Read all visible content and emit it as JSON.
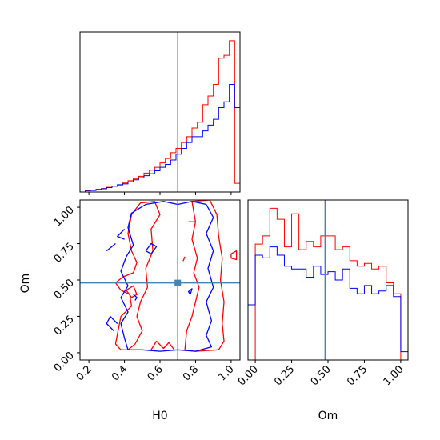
{
  "chart_data": {
    "type": "corner",
    "axis_labels": {
      "x": "H0",
      "y": "Om"
    },
    "truth": {
      "H0": 0.7,
      "Om": 0.48
    },
    "colors": {
      "red": "#ff0000",
      "blue": "#0000ff",
      "truth": "#4682b4",
      "frame": "#000000"
    },
    "panels": {
      "h0_hist": {
        "type": "histogram",
        "xlim": [
          0.15,
          1.05
        ],
        "bin_edges": [
          0.15,
          0.18,
          0.21,
          0.24,
          0.27,
          0.3,
          0.33,
          0.36,
          0.39,
          0.42,
          0.45,
          0.48,
          0.51,
          0.54,
          0.57,
          0.6,
          0.63,
          0.66,
          0.69,
          0.72,
          0.75,
          0.78,
          0.81,
          0.84,
          0.87,
          0.9,
          0.93,
          0.96,
          0.99,
          1.02,
          1.05
        ],
        "series": [
          {
            "name": "",
            "color": "red",
            "values": [
              0.0,
              0.4,
              0.6,
              0.9,
              1.2,
              1.6,
              2.0,
              2.4,
              3.1,
              3.9,
              4.6,
              5.4,
              6.5,
              7.5,
              8.5,
              10,
              11.5,
              13.5,
              15,
              17,
              19,
              22,
              24,
              30,
              33,
              37,
              46,
              47,
              52,
              3
            ]
          },
          {
            "name": "",
            "color": "blue",
            "values": [
              0.0,
              0.5,
              0.5,
              0.9,
              1.1,
              1.5,
              2.0,
              2.5,
              2.8,
              3.5,
              4.2,
              4.9,
              5.6,
              6.3,
              7.3,
              8.5,
              9.5,
              11,
              13,
              15,
              17,
              19,
              19,
              21,
              23,
              25,
              29,
              31,
              37,
              29
            ]
          }
        ]
      },
      "om_hist": {
        "type": "histogram",
        "xlim": [
          -0.05,
          1.05
        ],
        "xticks": [
          "0.00",
          "0.25",
          "0.50",
          "0.75",
          "1.00"
        ],
        "bin_edges": [
          -0.05,
          0.0,
          0.05,
          0.1,
          0.15,
          0.2,
          0.25,
          0.3,
          0.35,
          0.4,
          0.45,
          0.5,
          0.55,
          0.6,
          0.65,
          0.7,
          0.75,
          0.8,
          0.85,
          0.9,
          0.95,
          1.0,
          1.05
        ],
        "series": [
          {
            "name": "",
            "color": "red",
            "values": [
              0,
              42,
              45,
              55,
              51,
              41,
              53,
              40,
              43,
              41,
              45,
              45,
              40,
              41,
              36,
              34,
              35,
              33,
              34,
              28,
              24,
              0
            ]
          },
          {
            "name": "",
            "color": "blue",
            "values": [
              20,
              38,
              37,
              41,
              38,
              34,
              33,
              33,
              30,
              34,
              31,
              32,
              29,
              33,
              26,
              24,
              27,
              24,
              25,
              27,
              23,
              3
            ]
          }
        ]
      },
      "contour": {
        "type": "contour",
        "xlim": [
          0.15,
          1.05
        ],
        "ylim": [
          -0.05,
          1.05
        ],
        "xticks": [
          "0.2",
          "0.4",
          "0.6",
          "0.8",
          "1.0"
        ],
        "yticks": [
          "0.00",
          "0.25",
          "0.50",
          "0.75",
          "1.00"
        ],
        "series": [
          {
            "color": "red",
            "paths": [
              [
                [
                  0.35,
                  0.06
                ],
                [
                  0.38,
                  0.25
                ],
                [
                  0.44,
                  0.32
                ],
                [
                  0.43,
                  0.4
                ],
                [
                  0.38,
                  0.43
                ],
                [
                  0.35,
                  0.48
                ],
                [
                  0.39,
                  0.52
                ],
                [
                  0.45,
                  0.55
                ],
                [
                  0.47,
                  0.62
                ],
                [
                  0.44,
                  0.7
                ],
                [
                  0.42,
                  0.82
                ],
                [
                  0.44,
                  0.95
                ],
                [
                  0.49,
                  1.03
                ],
                [
                  0.57,
                  1.04
                ],
                [
                  0.6,
                  0.95
                ],
                [
                  0.55,
                  0.85
                ],
                [
                  0.56,
                  0.7
                ],
                [
                  0.52,
                  0.58
                ],
                [
                  0.53,
                  0.45
                ],
                [
                  0.49,
                  0.35
                ],
                [
                  0.47,
                  0.25
                ],
                [
                  0.5,
                  0.15
                ],
                [
                  0.46,
                  0.06
                ],
                [
                  0.42,
                  0.02
                ],
                [
                  0.38,
                  0.02
                ],
                [
                  0.35,
                  0.06
                ]
              ],
              [
                [
                  0.74,
                  0.02
                ],
                [
                  0.75,
                  0.15
                ],
                [
                  0.78,
                  0.25
                ],
                [
                  0.8,
                  0.35
                ],
                [
                  0.82,
                  0.45
                ],
                [
                  0.79,
                  0.55
                ],
                [
                  0.81,
                  0.65
                ],
                [
                  0.78,
                  0.78
                ],
                [
                  0.8,
                  0.9
                ],
                [
                  0.78,
                  1.04
                ],
                [
                  0.88,
                  1.05
                ],
                [
                  0.92,
                  0.95
                ],
                [
                  0.93,
                  0.8
                ],
                [
                  0.95,
                  0.65
                ],
                [
                  0.94,
                  0.5
                ],
                [
                  0.96,
                  0.35
                ],
                [
                  0.95,
                  0.2
                ],
                [
                  0.96,
                  0.08
                ],
                [
                  0.93,
                  0.02
                ],
                [
                  0.8,
                  0.01
                ],
                [
                  0.74,
                  0.02
                ]
              ],
              [
                [
                  0.55,
                  0.02
                ],
                [
                  0.58,
                  0.08
                ],
                [
                  0.62,
                  0.03
                ],
                [
                  0.65,
                  0.07
                ],
                [
                  0.68,
                  0.02
                ]
              ],
              [
                [
                  0.41,
                  0.43
                ],
                [
                  0.44,
                  0.38
                ],
                [
                  0.47,
                  0.4
                ],
                [
                  0.45,
                  0.46
                ],
                [
                  0.41,
                  0.43
                ]
              ],
              [
                [
                  0.73,
                  0.63
                ],
                [
                  0.74,
                  0.66
                ]
              ],
              [
                [
                  1.0,
                  0.65
                ],
                [
                  1.03,
                  0.64
                ],
                [
                  1.03,
                  0.7
                ],
                [
                  1.0,
                  0.68
                ],
                [
                  1.0,
                  0.65
                ]
              ]
            ]
          },
          {
            "color": "blue",
            "paths": [
              [
                [
                  0.42,
                  0.02
                ],
                [
                  0.4,
                  0.1
                ],
                [
                  0.38,
                  0.2
                ],
                [
                  0.42,
                  0.28
                ],
                [
                  0.38,
                  0.38
                ],
                [
                  0.42,
                  0.46
                ],
                [
                  0.38,
                  0.56
                ],
                [
                  0.41,
                  0.66
                ],
                [
                  0.45,
                  0.74
                ],
                [
                  0.42,
                  0.86
                ],
                [
                  0.44,
                  0.96
                ],
                [
                  0.52,
                  1.02
                ],
                [
                  0.62,
                  1.04
                ],
                [
                  0.7,
                  1.02
                ],
                [
                  0.78,
                  1.04
                ],
                [
                  0.86,
                  1.02
                ],
                [
                  0.9,
                  0.93
                ],
                [
                  0.86,
                  0.82
                ],
                [
                  0.9,
                  0.7
                ],
                [
                  0.87,
                  0.58
                ],
                [
                  0.9,
                  0.45
                ],
                [
                  0.86,
                  0.35
                ],
                [
                  0.89,
                  0.22
                ],
                [
                  0.86,
                  0.12
                ],
                [
                  0.89,
                  0.04
                ],
                [
                  0.8,
                  0.01
                ],
                [
                  0.7,
                  0.02
                ],
                [
                  0.6,
                  0.01
                ],
                [
                  0.5,
                  0.02
                ],
                [
                  0.42,
                  0.02
                ]
              ],
              [
                [
                  0.52,
                  0.7
                ],
                [
                  0.55,
                  0.75
                ],
                [
                  0.58,
                  0.73
                ],
                [
                  0.55,
                  0.68
                ],
                [
                  0.52,
                  0.7
                ]
              ],
              [
                [
                  0.4,
                  0.85
                ],
                [
                  0.36,
                  0.8
                ],
                [
                  0.4,
                  0.78
                ]
              ],
              [
                [
                  0.45,
                  0.4
                ],
                [
                  0.47,
                  0.38
                ],
                [
                  0.46,
                  0.36
                ]
              ],
              [
                [
                  0.76,
                  0.9
                ],
                [
                  0.8,
                  0.9
                ]
              ],
              [
                [
                  0.77,
                  0.4
                ],
                [
                  0.78,
                  0.44
                ],
                [
                  0.76,
                  0.42
                ],
                [
                  0.77,
                  0.4
                ]
              ],
              [
                [
                  0.36,
                  0.2
                ],
                [
                  0.32,
                  0.25
                ],
                [
                  0.3,
                  0.2
                ],
                [
                  0.34,
                  0.15
                ]
              ],
              [
                [
                  0.3,
                  0.7
                ],
                [
                  0.35,
                  0.75
                ]
              ]
            ]
          }
        ]
      }
    }
  }
}
